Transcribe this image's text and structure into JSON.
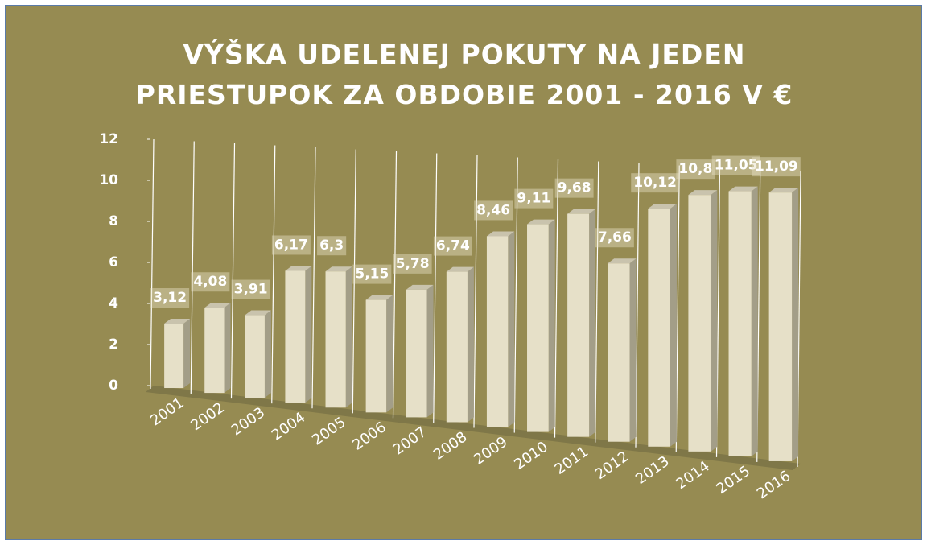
{
  "chart_data": {
    "type": "bar3d",
    "title": "VÝŠKA UDELENEJ POKUTY NA JEDEN PRIESTUPOK ZA OBDOBIE 2001 - 2016 V €",
    "categories": [
      "2001",
      "2002",
      "2003",
      "2004",
      "2005",
      "2006",
      "2007",
      "2008",
      "2009",
      "2010",
      "2011",
      "2012",
      "2013",
      "2014",
      "2015",
      "2016"
    ],
    "values": [
      3.12,
      4.08,
      3.91,
      6.17,
      6.3,
      5.15,
      5.78,
      6.74,
      8.46,
      9.11,
      9.68,
      7.66,
      10.12,
      10.8,
      11.05,
      11.09
    ],
    "value_labels": [
      "3,12",
      "4,08",
      "3,91",
      "6,17",
      "6,3",
      "5,15",
      "5,78",
      "6,74",
      "8,46",
      "9,11",
      "9,68",
      "7,66",
      "10,12",
      "10,8",
      "11,05",
      "11,09"
    ],
    "color": "#e6e0c8",
    "ylim": [
      0,
      12
    ],
    "yticks": [
      0,
      2,
      4,
      6,
      8,
      10,
      12
    ]
  }
}
